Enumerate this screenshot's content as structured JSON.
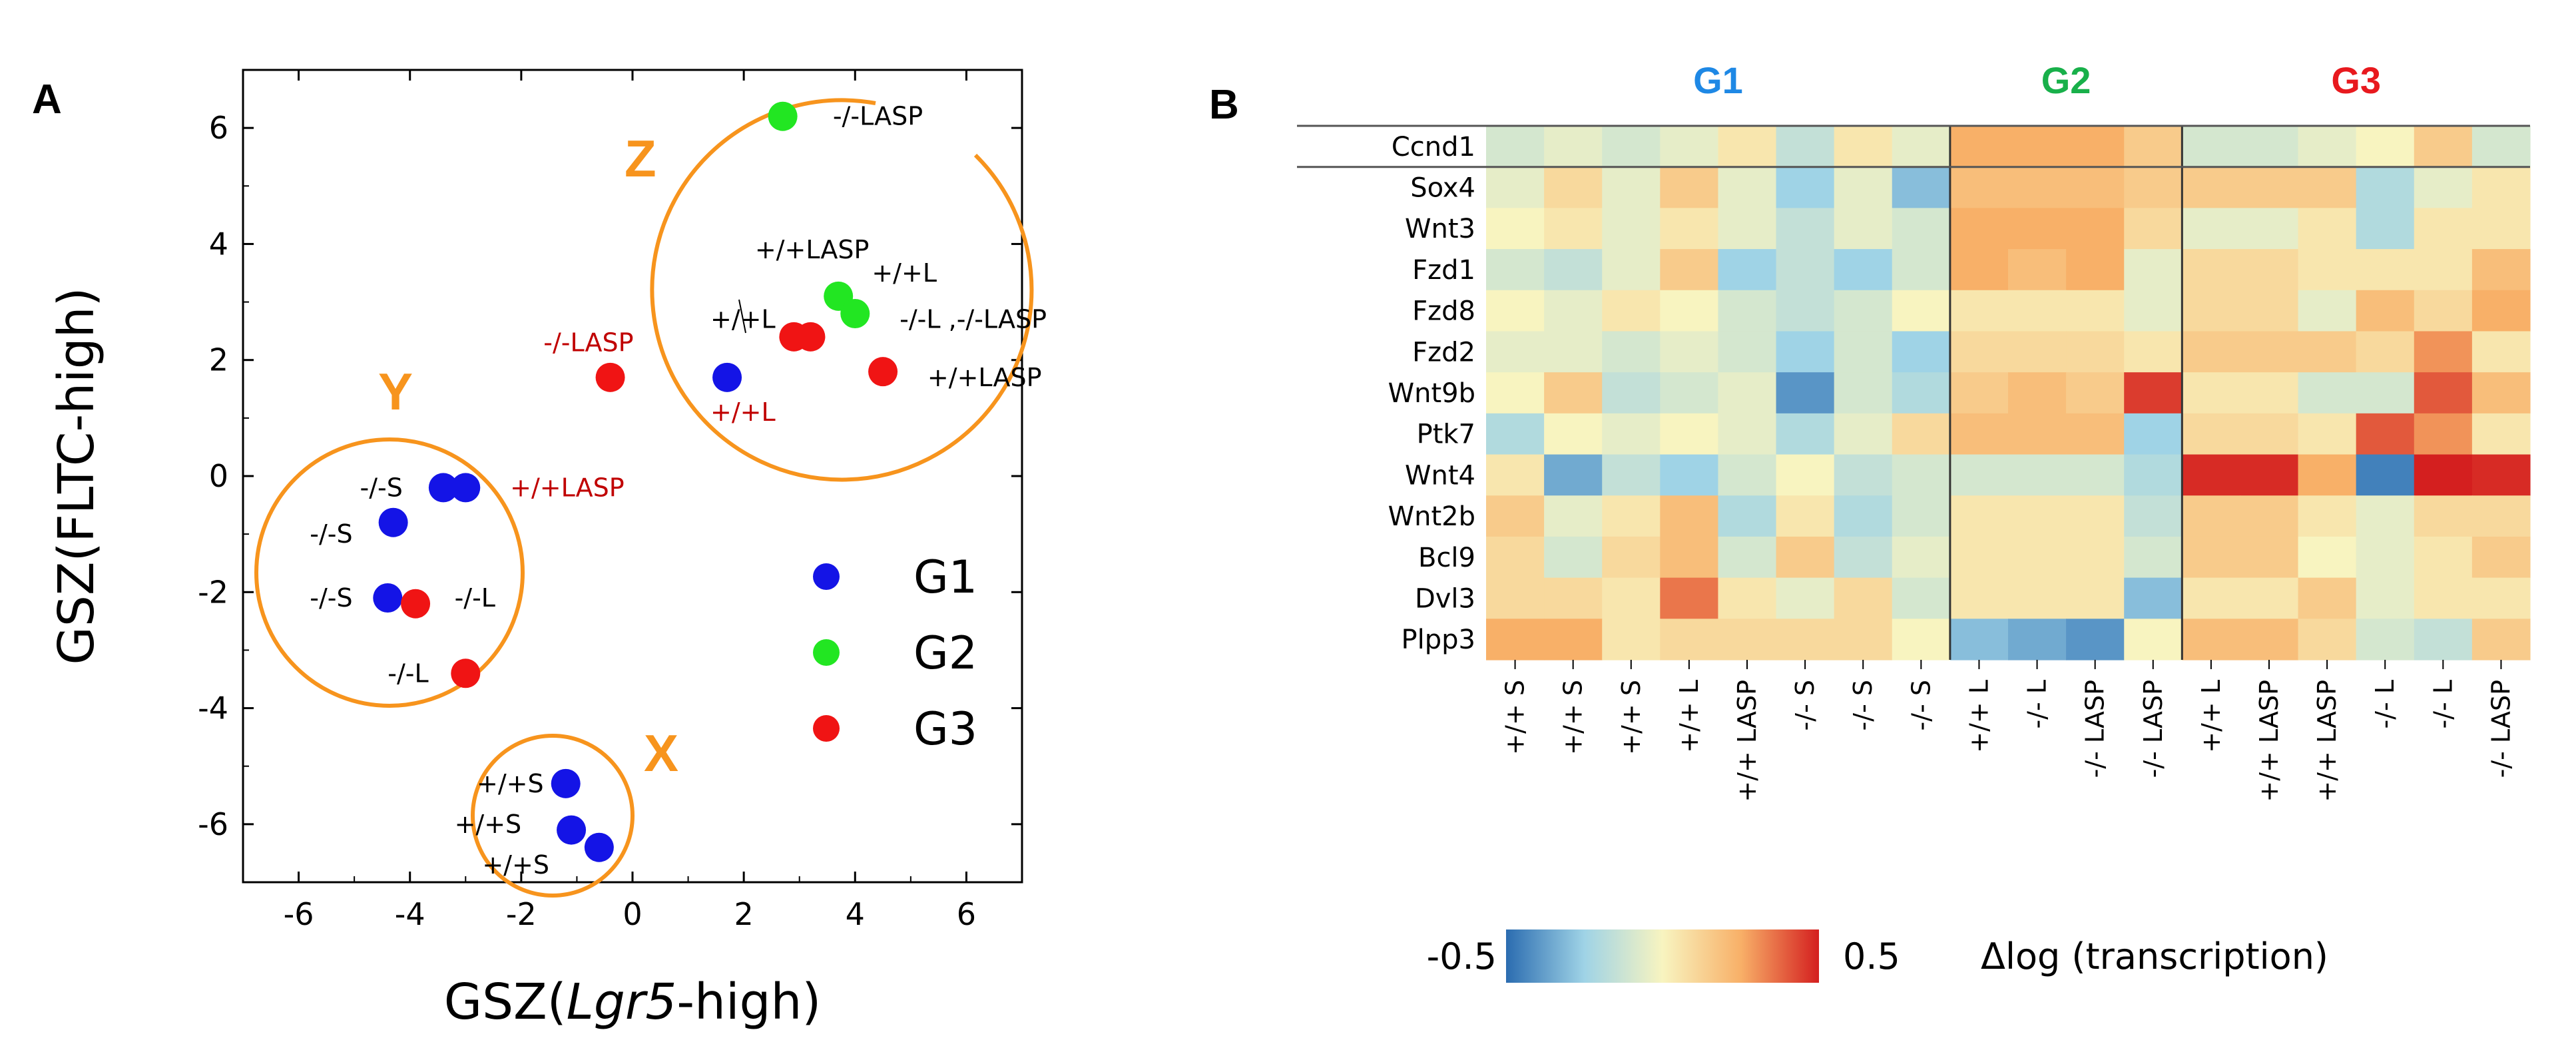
{
  "panels": {
    "a_letter": "A",
    "b_letter": "B"
  },
  "chart_data": [
    {
      "type": "scatter",
      "xlabel_prefix": "GSZ(",
      "xlabel_italic": "Lgr5",
      "xlabel_suffix": "-high)",
      "ylabel": "GSZ(FLTC-high)",
      "xlim": [
        -7,
        7
      ],
      "ylim": [
        -7,
        7
      ],
      "xticks": [
        -6,
        -4,
        -2,
        0,
        2,
        4,
        6
      ],
      "yticks": [
        -6,
        -4,
        -2,
        0,
        2,
        4,
        6
      ],
      "series": [
        {
          "name": "G1",
          "color": "#1414E6",
          "points": [
            [
              1.7,
              1.7
            ],
            [
              -3.4,
              -0.2
            ],
            [
              -3.0,
              -0.2
            ],
            [
              -4.3,
              -0.8
            ],
            [
              -4.4,
              -2.1
            ],
            [
              -1.2,
              -5.3
            ],
            [
              -1.1,
              -6.1
            ],
            [
              -0.6,
              -6.4
            ]
          ]
        },
        {
          "name": "G2",
          "color": "#22E622",
          "points": [
            [
              2.7,
              6.2
            ],
            [
              3.7,
              3.1
            ],
            [
              4.0,
              2.8
            ]
          ]
        },
        {
          "name": "G3",
          "color": "#F01414",
          "points": [
            [
              -0.4,
              1.7
            ],
            [
              2.9,
              2.4
            ],
            [
              3.2,
              2.4
            ],
            [
              4.5,
              1.8
            ],
            [
              -3.9,
              -2.2
            ],
            [
              -3.0,
              -3.4
            ]
          ]
        }
      ],
      "point_labels": [
        {
          "text": "-/-LASP",
          "color": "#000000",
          "x": 3.6,
          "y": 6.2
        },
        {
          "text": "+/+LASP",
          "color": "#000000",
          "x": 2.2,
          "y": 3.9
        },
        {
          "text": "+/+L",
          "color": "#000000",
          "x": 4.3,
          "y": 3.5
        },
        {
          "text": "+/+L",
          "color": "#000000",
          "x": 1.4,
          "y": 2.7
        },
        {
          "text": "-/-L ,-/-LASP",
          "color": "#000000",
          "x": 4.8,
          "y": 2.7
        },
        {
          "text": "-/-LASP",
          "color": "#C00000",
          "x": -1.6,
          "y": 2.3
        },
        {
          "text": "+/+LASP",
          "color": "#000000",
          "x": 5.3,
          "y": 1.7
        },
        {
          "text": "+/+L",
          "color": "#C00000",
          "x": 1.4,
          "y": 1.1
        },
        {
          "text": "-/-S",
          "color": "#000000",
          "x": -4.9,
          "y": -0.2
        },
        {
          "text": "+/+LASP",
          "color": "#C00000",
          "x": -2.2,
          "y": -0.2
        },
        {
          "text": "-/-S",
          "color": "#000000",
          "x": -5.8,
          "y": -1.0
        },
        {
          "text": "-/-S",
          "color": "#000000",
          "x": -5.8,
          "y": -2.1
        },
        {
          "text": "-/-L",
          "color": "#000000",
          "x": -3.2,
          "y": -2.1
        },
        {
          "text": "-/-L",
          "color": "#000000",
          "x": -4.4,
          "y": -3.4
        },
        {
          "text": "+/+S",
          "color": "#000000",
          "x": -2.8,
          "y": -5.3
        },
        {
          "text": "+/+S",
          "color": "#000000",
          "x": -3.2,
          "y": -6.0
        },
        {
          "text": "+/+S",
          "color": "#000000",
          "x": -2.7,
          "y": -6.7
        }
      ],
      "clusters": [
        "Z",
        "Y",
        "X"
      ],
      "legend": [
        "G1",
        "G2",
        "G3"
      ]
    },
    {
      "type": "heatmap",
      "colorbar": {
        "min_label": "-0.5",
        "max_label": "0.5",
        "title": "Δlog (transcription)",
        "range": [
          -0.5,
          0.5
        ]
      },
      "groups": [
        {
          "name": "G1",
          "color": "#1E88E5"
        },
        {
          "name": "G2",
          "color": "#18B04A"
        },
        {
          "name": "G3",
          "color": "#E8191E"
        }
      ],
      "group_sizes": [
        8,
        4,
        6
      ],
      "columns": [
        "+/+ S",
        "+/+ S",
        "+/+ S",
        "+/+ L",
        "+/+ LASP",
        "-/- S",
        "-/- S",
        "-/- S",
        "+/+ L",
        "-/- L",
        "-/- LASP",
        "-/- LASP",
        "+/+ L",
        "+/+ LASP",
        "+/+ LASP",
        "-/- L",
        "-/- L",
        "-/- LASP"
      ],
      "rows": [
        "Ccnd1",
        "Sox4",
        "Wnt3",
        "Fzd1",
        "Fzd8",
        "Fzd2",
        "Wnt9b",
        "Ptk7",
        "Wnt4",
        "Wnt2b",
        "Bcl9",
        "Dvl3",
        "Plpp3"
      ],
      "values": [
        [
          -0.1,
          -0.05,
          -0.1,
          -0.05,
          0.05,
          -0.15,
          0.05,
          -0.05,
          0.25,
          0.25,
          0.25,
          0.15,
          -0.1,
          -0.1,
          -0.05,
          0.0,
          0.15,
          -0.1
        ],
        [
          -0.05,
          0.1,
          -0.05,
          0.15,
          -0.05,
          -0.25,
          -0.05,
          -0.3,
          0.2,
          0.2,
          0.2,
          0.15,
          0.15,
          0.15,
          0.15,
          -0.2,
          -0.05,
          0.05
        ],
        [
          0.0,
          0.05,
          -0.05,
          0.05,
          -0.05,
          -0.15,
          -0.05,
          -0.1,
          0.25,
          0.25,
          0.25,
          0.1,
          -0.05,
          -0.05,
          0.05,
          -0.2,
          0.05,
          0.05
        ],
        [
          -0.1,
          -0.15,
          -0.05,
          0.15,
          -0.25,
          -0.15,
          -0.25,
          -0.1,
          0.25,
          0.2,
          0.25,
          -0.05,
          0.1,
          0.1,
          0.05,
          0.05,
          0.05,
          0.2
        ],
        [
          0.0,
          -0.05,
          0.05,
          0.0,
          -0.1,
          -0.15,
          -0.1,
          0.0,
          0.05,
          0.05,
          0.05,
          -0.05,
          0.1,
          0.1,
          -0.05,
          0.2,
          0.1,
          0.25
        ],
        [
          -0.05,
          -0.05,
          -0.1,
          -0.05,
          -0.1,
          -0.25,
          -0.1,
          -0.25,
          0.1,
          0.1,
          0.1,
          0.05,
          0.15,
          0.15,
          0.15,
          0.1,
          0.3,
          0.05
        ],
        [
          0.0,
          0.15,
          -0.15,
          -0.1,
          -0.05,
          -0.4,
          -0.1,
          -0.2,
          0.15,
          0.2,
          0.15,
          0.45,
          0.05,
          0.05,
          -0.1,
          -0.1,
          0.4,
          0.2
        ],
        [
          -0.2,
          0.0,
          -0.05,
          0.0,
          -0.05,
          -0.2,
          -0.05,
          0.1,
          0.2,
          0.2,
          0.2,
          -0.25,
          0.1,
          0.1,
          0.05,
          0.4,
          0.3,
          0.05
        ],
        [
          0.05,
          -0.35,
          -0.15,
          -0.25,
          -0.1,
          0.0,
          -0.15,
          -0.1,
          -0.1,
          -0.1,
          -0.1,
          -0.2,
          0.48,
          0.48,
          0.25,
          -0.45,
          0.5,
          0.48
        ],
        [
          0.15,
          -0.05,
          0.05,
          0.2,
          -0.2,
          0.05,
          -0.2,
          -0.1,
          0.05,
          0.05,
          0.05,
          -0.15,
          0.15,
          0.15,
          0.05,
          -0.05,
          0.1,
          0.1
        ],
        [
          0.1,
          -0.1,
          0.1,
          0.2,
          -0.1,
          0.15,
          -0.15,
          -0.05,
          0.05,
          0.05,
          0.05,
          -0.1,
          0.15,
          0.15,
          0.0,
          -0.05,
          0.05,
          0.15
        ],
        [
          0.1,
          0.1,
          0.05,
          0.35,
          0.05,
          -0.05,
          0.1,
          -0.1,
          0.05,
          0.05,
          0.05,
          -0.3,
          0.05,
          0.05,
          0.15,
          -0.05,
          0.05,
          0.05
        ],
        [
          0.25,
          0.25,
          0.05,
          0.1,
          0.1,
          0.1,
          0.1,
          0.0,
          -0.3,
          -0.35,
          -0.4,
          0.0,
          0.2,
          0.2,
          0.1,
          -0.1,
          -0.15,
          0.15
        ]
      ]
    }
  ]
}
